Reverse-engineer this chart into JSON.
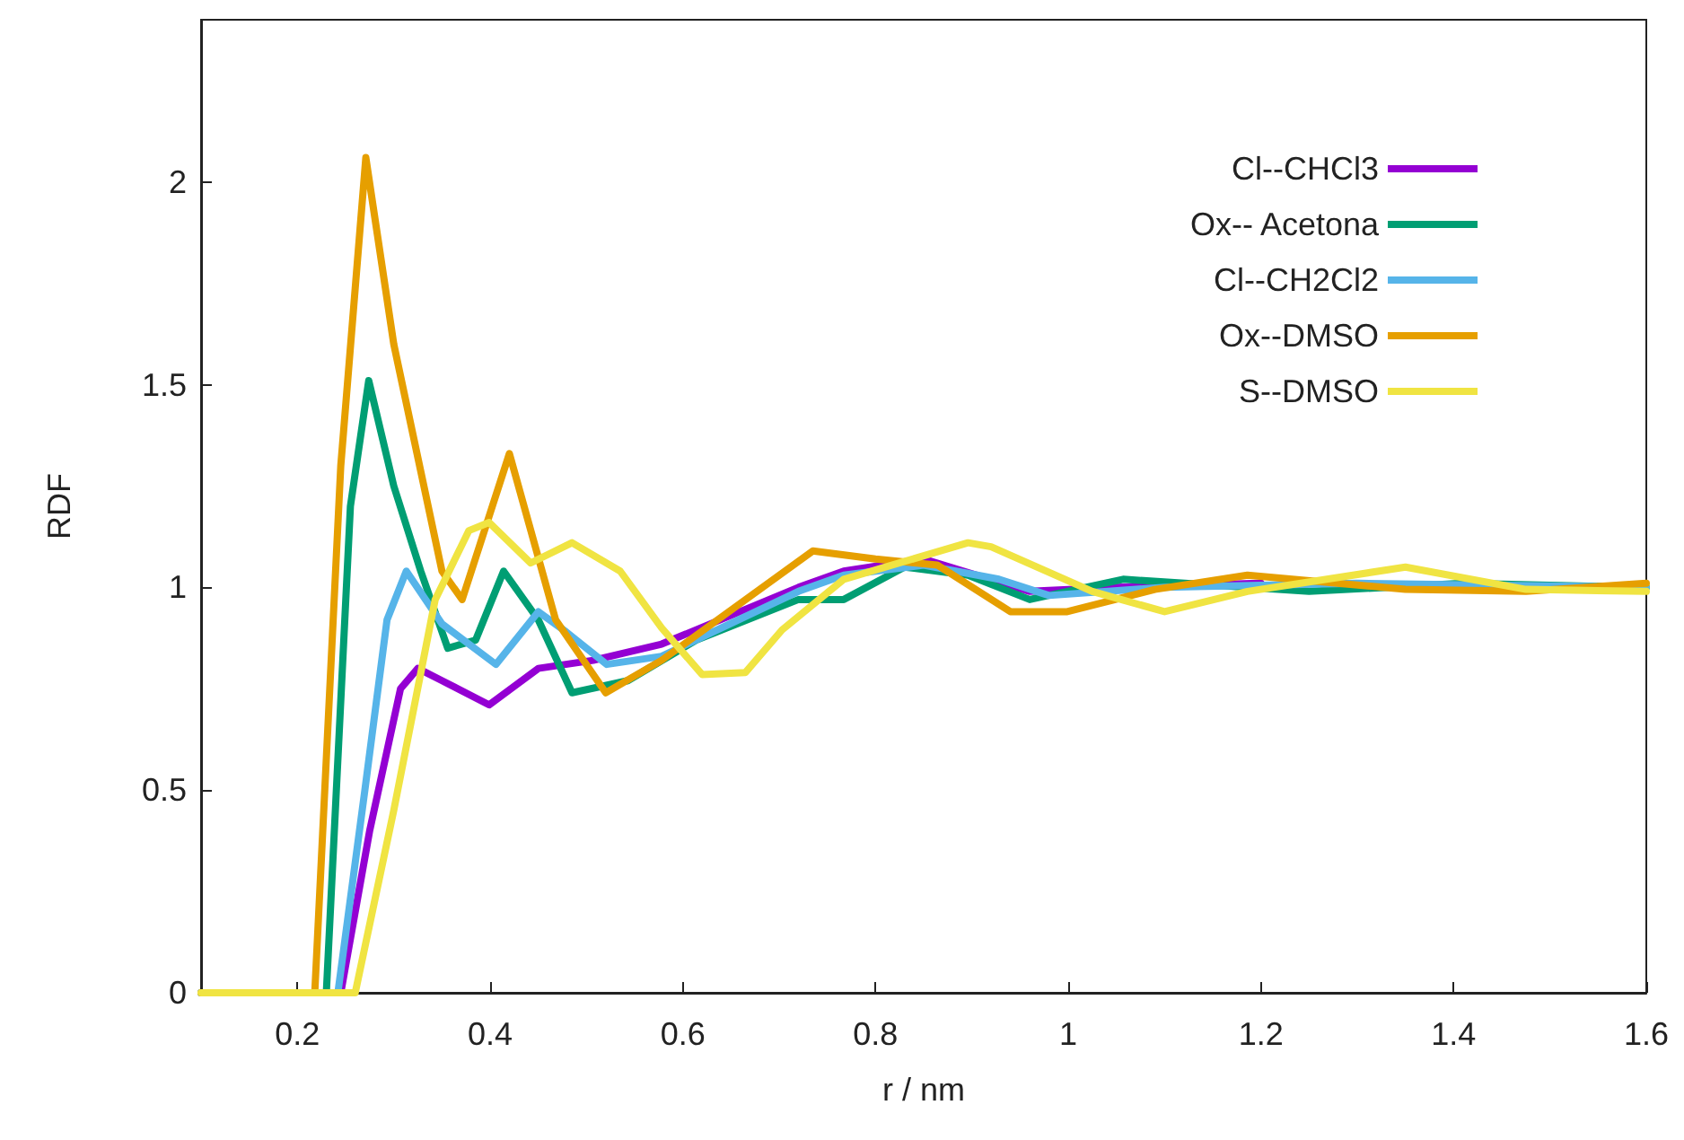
{
  "chart_data": {
    "type": "line",
    "xlabel": "r / nm",
    "ylabel": "RDF",
    "xlim": [
      0.1,
      1.6
    ],
    "ylim": [
      0,
      2.4
    ],
    "xticks": [
      0.2,
      0.4,
      0.6,
      0.8,
      1,
      1.2,
      1.4,
      1.6
    ],
    "yticks": [
      0,
      0.5,
      1,
      1.5,
      2
    ],
    "grid": false,
    "legend": "top right",
    "marker": "none",
    "line_style": "solid",
    "series": [
      {
        "name": "Cl--CHCl3",
        "color": "#9400d3",
        "x": [
          0.1,
          0.245,
          0.275,
          0.307,
          0.325,
          0.35,
          0.399,
          0.45,
          0.507,
          0.578,
          0.72,
          0.767,
          0.85,
          0.96,
          1.05,
          1.2
        ],
        "values": [
          0,
          0,
          0.4,
          0.75,
          0.8,
          0.77,
          0.71,
          0.8,
          0.82,
          0.86,
          1.0,
          1.04,
          1.07,
          0.99,
          1.0,
          1.01
        ]
      },
      {
        "name": "Ox-- Acetona",
        "color": "#009e73",
        "x": [
          0.1,
          0.23,
          0.255,
          0.274,
          0.3,
          0.328,
          0.356,
          0.385,
          0.414,
          0.45,
          0.485,
          0.543,
          0.614,
          0.72,
          0.767,
          0.83,
          0.896,
          0.96,
          1.057,
          1.25,
          1.41,
          1.6
        ],
        "values": [
          0,
          0,
          1.2,
          1.51,
          1.25,
          1.04,
          0.85,
          0.87,
          1.04,
          0.92,
          0.74,
          0.77,
          0.87,
          0.97,
          0.97,
          1.05,
          1.03,
          0.97,
          1.02,
          0.99,
          1.01,
          1.0
        ]
      },
      {
        "name": "Cl--CH2Cl2",
        "color": "#56b4e9",
        "x": [
          0.1,
          0.242,
          0.27,
          0.293,
          0.313,
          0.35,
          0.406,
          0.45,
          0.479,
          0.521,
          0.578,
          0.72,
          0.767,
          0.85,
          0.928,
          0.98,
          1.1,
          1.3,
          1.6
        ],
        "values": [
          0,
          0,
          0.5,
          0.92,
          1.04,
          0.91,
          0.81,
          0.94,
          0.89,
          0.81,
          0.83,
          0.99,
          1.03,
          1.055,
          1.02,
          0.98,
          1.0,
          1.01,
          1.0
        ]
      },
      {
        "name": "Ox--DMSO",
        "color": "#e69f00",
        "x": [
          0.1,
          0.218,
          0.245,
          0.271,
          0.3,
          0.35,
          0.371,
          0.42,
          0.468,
          0.52,
          0.578,
          0.735,
          0.8,
          0.864,
          0.94,
          0.999,
          1.09,
          1.186,
          1.35,
          1.475,
          1.6
        ],
        "values": [
          0,
          0,
          1.3,
          2.06,
          1.6,
          1.04,
          0.97,
          1.33,
          0.92,
          0.74,
          0.82,
          1.09,
          1.07,
          1.055,
          0.94,
          0.94,
          0.995,
          1.03,
          0.995,
          0.99,
          1.01
        ]
      },
      {
        "name": "S--DMSO",
        "color": "#f0e442",
        "x": [
          0.1,
          0.26,
          0.3,
          0.343,
          0.378,
          0.399,
          0.442,
          0.485,
          0.535,
          0.578,
          0.62,
          0.665,
          0.703,
          0.767,
          0.896,
          0.92,
          1.025,
          1.1,
          1.186,
          1.35,
          1.475,
          1.6
        ],
        "values": [
          0,
          0,
          0.45,
          0.97,
          1.14,
          1.16,
          1.06,
          1.11,
          1.04,
          0.9,
          0.785,
          0.79,
          0.895,
          1.02,
          1.11,
          1.1,
          0.99,
          0.94,
          0.99,
          1.05,
          0.995,
          0.99
        ]
      }
    ]
  }
}
